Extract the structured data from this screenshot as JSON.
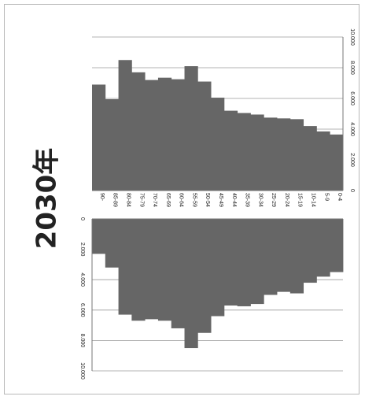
{
  "chart_data": {
    "type": "bar",
    "title": "2030年",
    "categories": [
      "90-",
      "85-89",
      "80-84",
      "75-79",
      "70-74",
      "65-69",
      "60-64",
      "55-59",
      "50-54",
      "45-49",
      "40-44",
      "35-39",
      "30-34",
      "25-29",
      "20-24",
      "15-19",
      "10-14",
      "5-9",
      "0-4"
    ],
    "series": [
      {
        "values": [
          6900,
          5950,
          8500,
          7700,
          7200,
          7350,
          7250,
          8100,
          7100,
          6050,
          5200,
          5050,
          4950,
          4750,
          4700,
          4650,
          4200,
          3850,
          3650
        ]
      },
      {
        "values": [
          2300,
          3200,
          6300,
          6700,
          6600,
          6700,
          7200,
          8500,
          7500,
          6400,
          5700,
          5750,
          5600,
          5000,
          4800,
          4900,
          4200,
          3800,
          3500
        ]
      }
    ],
    "top_axis": {
      "range": [
        0,
        10000
      ],
      "ticks": [
        "0",
        "2.000",
        "4.000",
        "6.000",
        "8.000",
        "10.000"
      ]
    },
    "bottom_axis": {
      "range": [
        0,
        10000
      ],
      "ticks": [
        "0",
        "2.000",
        "4.000",
        "6.000",
        "8.000",
        "10.000"
      ]
    },
    "bar_color": "#666666",
    "grid": true
  }
}
